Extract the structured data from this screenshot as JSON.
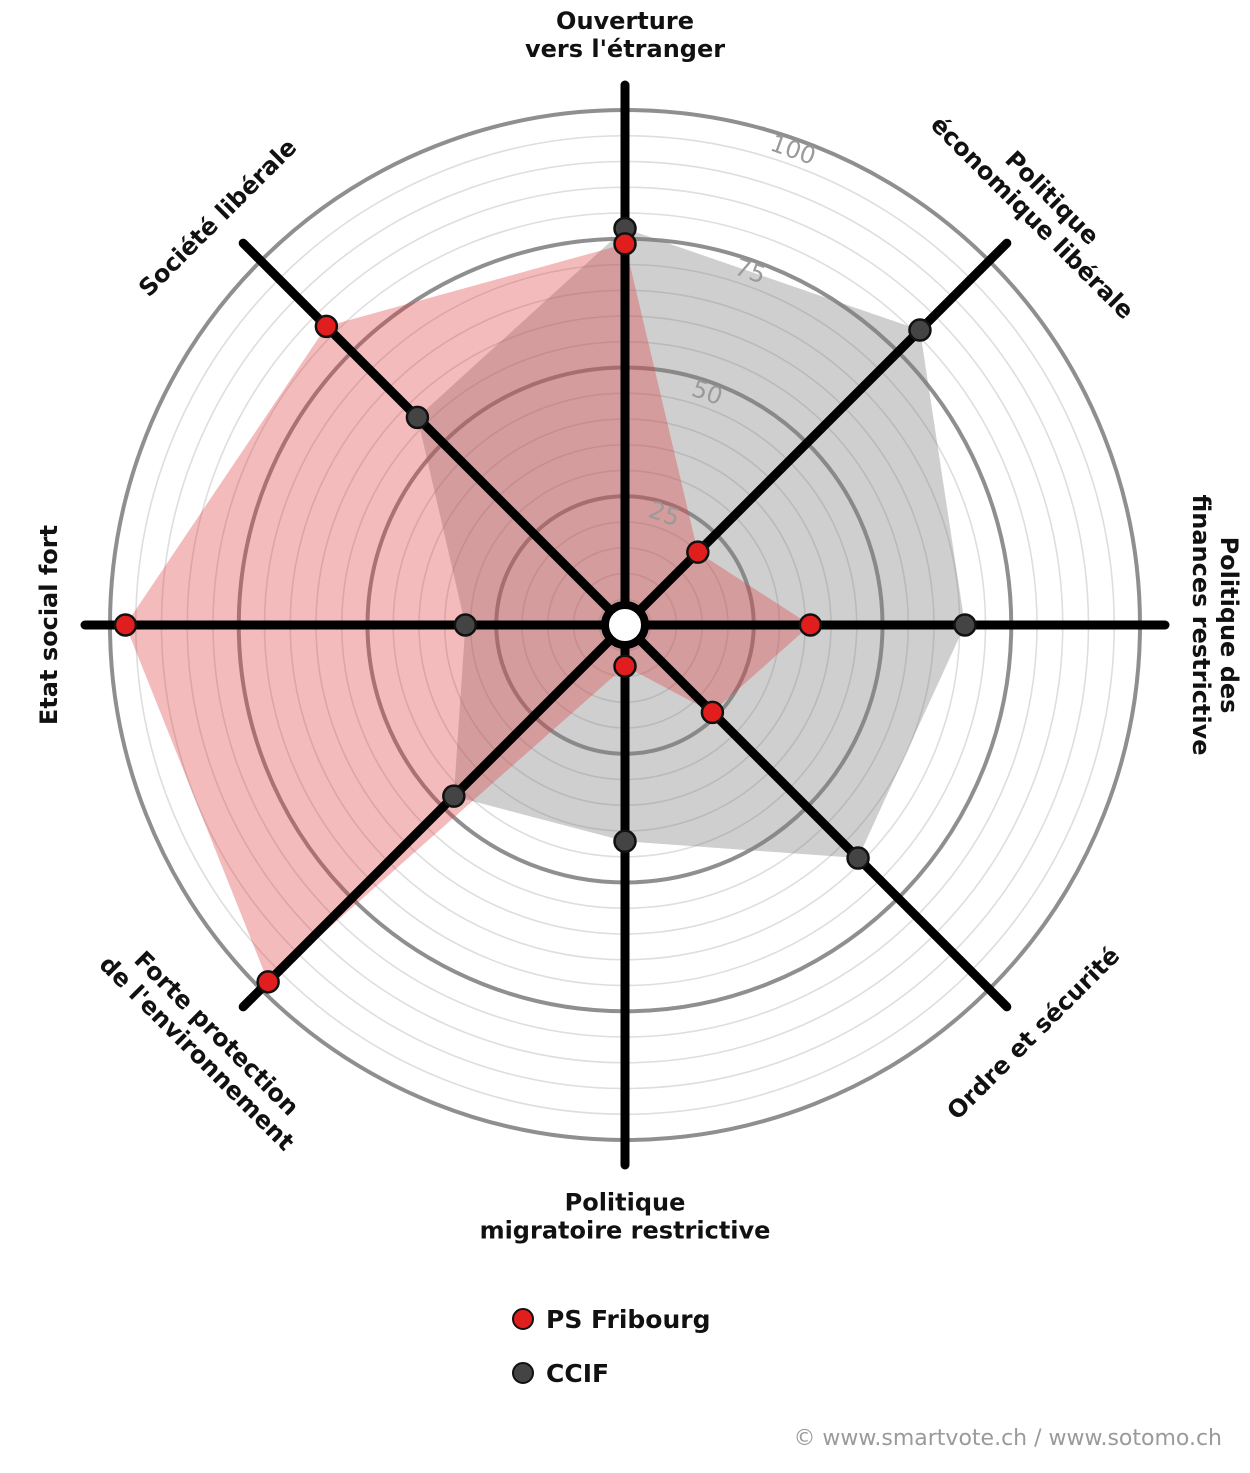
{
  "chart_data": {
    "type": "radar",
    "axes": [
      "Ouverture vers l'étranger",
      "Politique économique libérale",
      "Politique des finances restrictive",
      "Ordre et sécurité",
      "Politique migratoire restrictive",
      "Forte protection de l'environnement",
      "Etat social fort",
      "Société libérale"
    ],
    "axis_label_lines": [
      [
        "Ouverture",
        "vers l'étranger"
      ],
      [
        "Politique",
        "économique libérale"
      ],
      [
        "Politique des",
        "finances restrictive"
      ],
      [
        "Ordre et sécurité"
      ],
      [
        "Politique",
        "migratoire restrictive"
      ],
      [
        "Forte protection",
        "de l'environnement"
      ],
      [
        "Etat social fort"
      ],
      [
        "Société libérale"
      ]
    ],
    "rlim": [
      0,
      100
    ],
    "ticks": [
      25,
      50,
      75,
      100
    ],
    "series": [
      {
        "name": "PS Fribourg",
        "color": "#e01e1e",
        "fill": "rgba(220, 60, 60, 0.35)",
        "values": [
          74,
          20,
          36,
          24,
          8,
          98,
          97,
          82
        ]
      },
      {
        "name": "CCIF",
        "color": "#444444",
        "fill": "rgba(130, 130, 130, 0.38)",
        "values": [
          77,
          81,
          66,
          64,
          42,
          47,
          31,
          57
        ]
      }
    ]
  },
  "legend": {
    "items": [
      {
        "label": "PS Fribourg",
        "color": "#e01e1e"
      },
      {
        "label": "CCIF",
        "color": "#444444"
      }
    ]
  },
  "credit": "© www.smartvote.ch / www.sotomo.ch"
}
